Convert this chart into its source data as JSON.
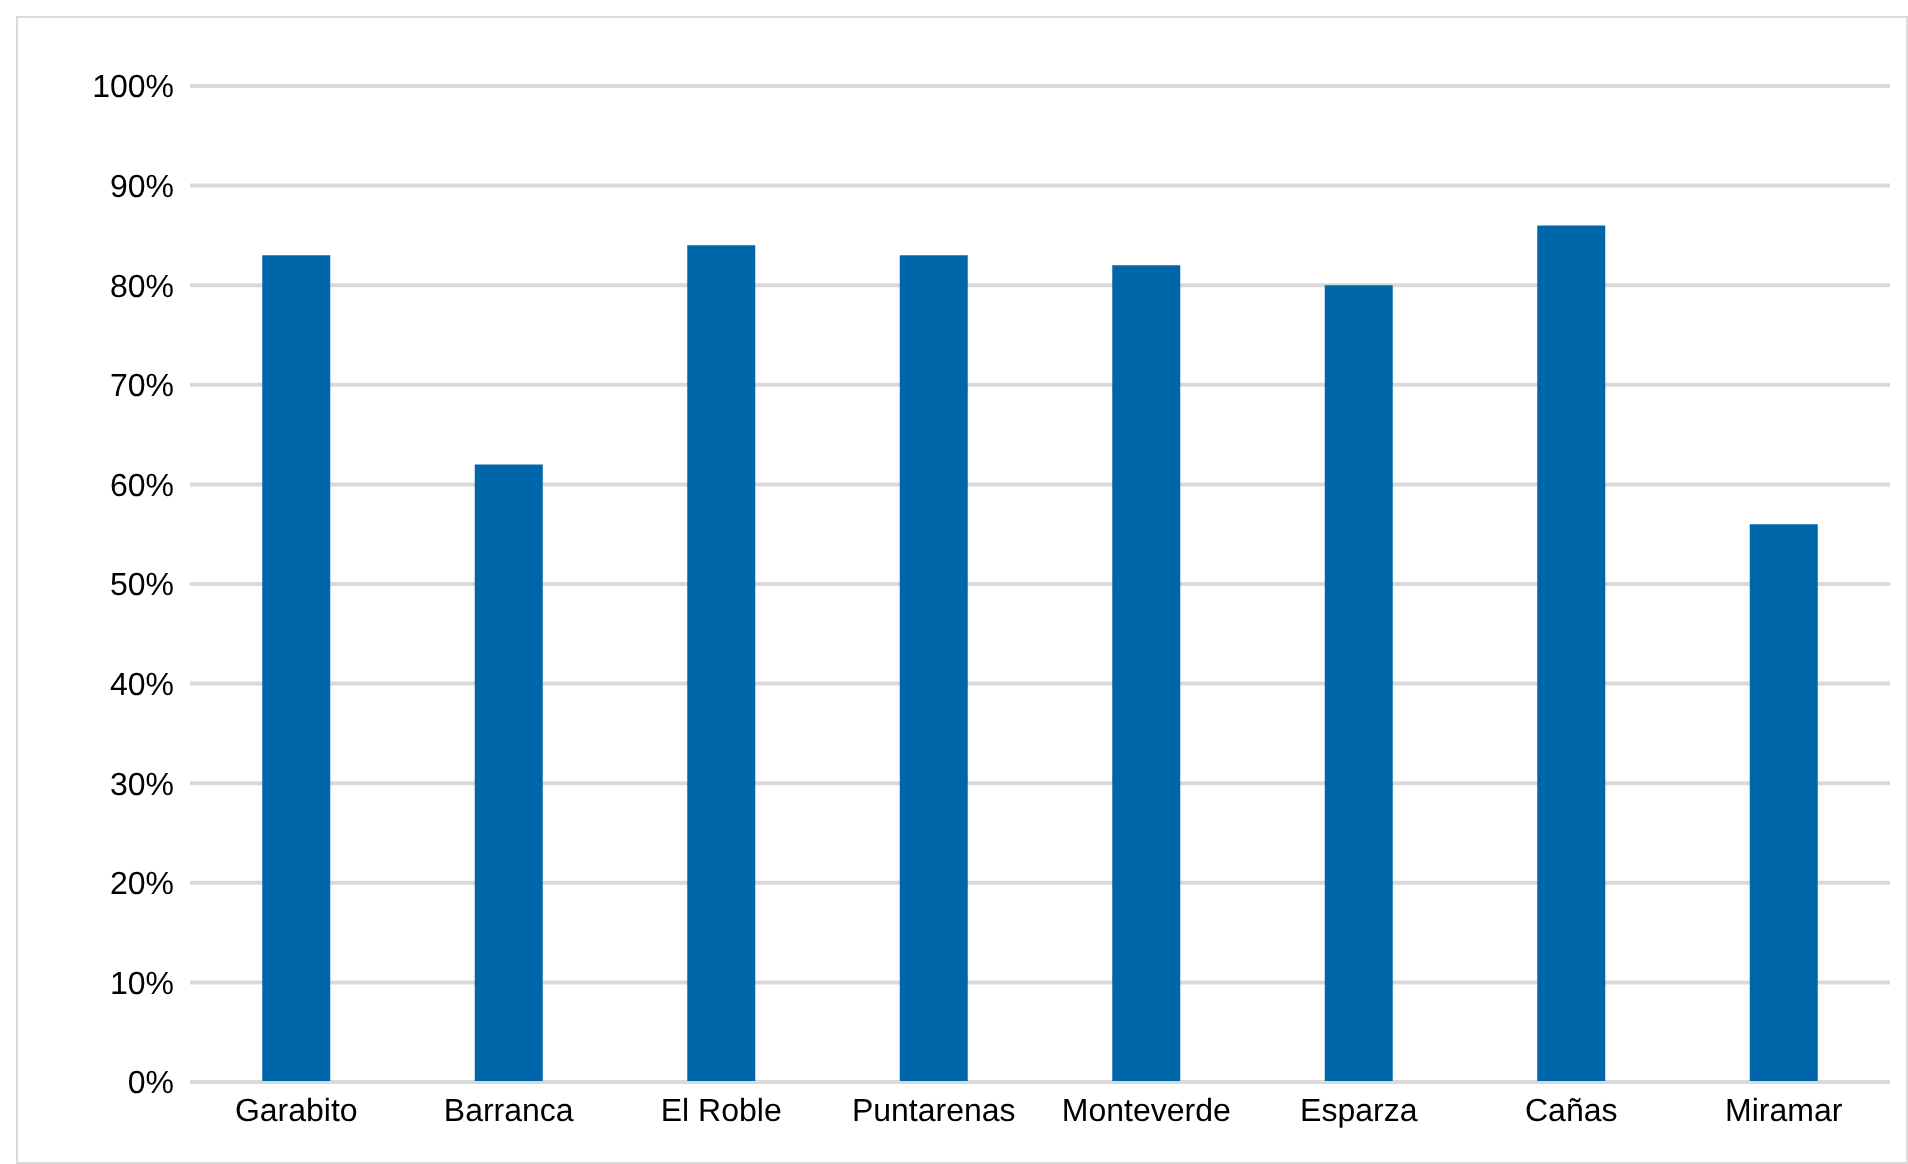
{
  "chart_data": {
    "type": "bar",
    "categories": [
      "Garabito",
      "Barranca",
      "El Roble",
      "Puntarenas",
      "Monteverde",
      "Esparza",
      "Cañas",
      "Miramar"
    ],
    "values": [
      83,
      62,
      84,
      83,
      82,
      80,
      86,
      56
    ],
    "color": "#0066aa",
    "ylim": [
      0,
      100
    ],
    "yticks": [
      {
        "value": 0,
        "label": "0%"
      },
      {
        "value": 10,
        "label": "10%"
      },
      {
        "value": 20,
        "label": "20%"
      },
      {
        "value": 30,
        "label": "30%"
      },
      {
        "value": 40,
        "label": "40%"
      },
      {
        "value": 50,
        "label": "50%"
      },
      {
        "value": 60,
        "label": "60%"
      },
      {
        "value": 70,
        "label": "70%"
      },
      {
        "value": 80,
        "label": "80%"
      },
      {
        "value": 90,
        "label": "90%"
      },
      {
        "value": 100,
        "label": "100%"
      }
    ],
    "grid": "y"
  }
}
